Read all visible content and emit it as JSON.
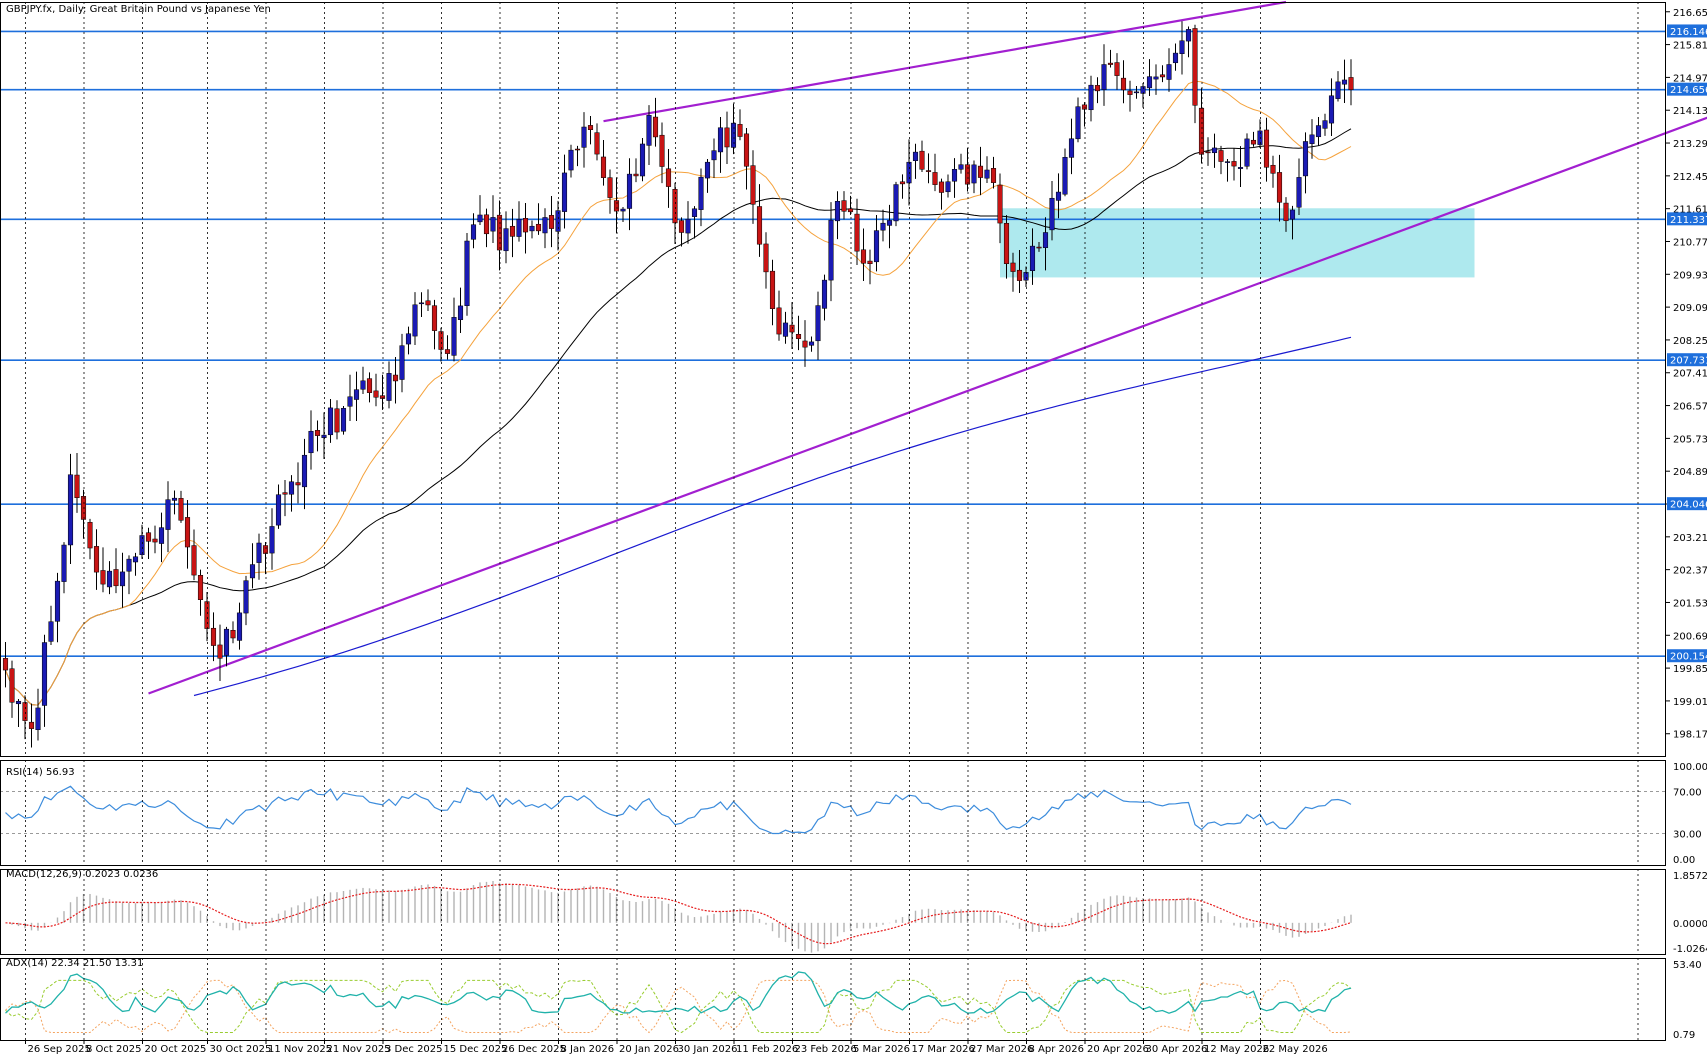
{
  "window": {
    "symbol": "GBPJPY.fx",
    "timeframe": "Daily",
    "description": "Great Britain Pound vs Japanese Yen",
    "title_text": "GBPJPY.fx, Daily:  Great Britain Pound vs Japanese Yen"
  },
  "colors": {
    "bull": "#1a1ab4",
    "bear": "#c81414",
    "hline": "#1e6fdc",
    "channel": "#a21fd0",
    "ma20": "#f5a23c",
    "ma50": "#000000",
    "ma200": "#1a1ad0",
    "zone": "#aee9ee",
    "rsi": "#3c8cdc",
    "macd_hist": "#b4b4b4",
    "macd_signal": "#e61e1e",
    "adx_main": "#20b2aa",
    "adx_plus": "#9acd32",
    "adx_minus": "#f4a460"
  },
  "price_axis": {
    "ticks": [
      "216.650",
      "215.810",
      "214.970",
      "214.130",
      "213.290",
      "212.450",
      "211.610",
      "210.770",
      "209.930",
      "209.090",
      "208.250",
      "207.410",
      "206.570",
      "205.730",
      "204.890",
      "204.050",
      "203.210",
      "202.370",
      "201.530",
      "200.690",
      "199.850",
      "199.010",
      "198.170"
    ],
    "tagged_levels": [
      {
        "text": "216.146",
        "value": 216.146
      },
      {
        "text": "214.656",
        "value": 214.656
      },
      {
        "text": "211.337",
        "value": 211.337
      },
      {
        "text": "207.731",
        "value": 207.731
      },
      {
        "text": "204.046",
        "value": 204.046
      },
      {
        "text": "200.154",
        "value": 200.154
      }
    ]
  },
  "date_axis": {
    "labels": [
      "26 Sep 2025",
      "8 Oct 2025",
      "20 Oct 2025",
      "30 Oct 2025",
      "11 Nov 2025",
      "21 Nov 2025",
      "3 Dec 2025",
      "15 Dec 2025",
      "26 Dec 2025",
      "8 Jan 2026",
      "20 Jan 2026",
      "30 Jan 2026",
      "11 Feb 2026",
      "23 Feb 2026",
      "5 Mar 2026",
      "17 Mar 2026",
      "27 Mar 2026",
      "8 Apr 2026",
      "20 Apr 2026",
      "30 Apr 2026",
      "12 May 2026",
      "22 May 2026"
    ]
  },
  "indicators": {
    "rsi": {
      "label": "RSI(14) 56.93",
      "ticks": [
        "100.00",
        "70.00",
        "30.00",
        "0.00"
      ]
    },
    "macd": {
      "label": "MACD(12,26,9) 0.2023 0.0236",
      "ticks": [
        "1.8572",
        "0.0000",
        "-1.0264"
      ]
    },
    "adx": {
      "label": "ADX(14) 22.34 21.50 13.31",
      "ticks": [
        "53.40",
        "0.79"
      ]
    }
  },
  "chart_data": {
    "type": "candlestick",
    "title": "GBPJPY.fx, Daily:  Great Britain Pound vs Japanese Yen",
    "ylim": [
      197.6,
      216.9
    ],
    "horizontal_levels": [
      216.146,
      214.656,
      211.337,
      207.731,
      204.046,
      200.154
    ],
    "support_zone": {
      "from_bar": 153,
      "to_bar": 226,
      "low": 209.85,
      "high": 211.62
    },
    "trendlines": [
      {
        "from": [
          22,
          199.2
        ],
        "to": [
          297,
          216.1
        ]
      },
      {
        "from": [
          92,
          213.85
        ],
        "to": [
          197,
          216.9
        ]
      }
    ],
    "candles": {
      "first_date": "26 Sep 2025",
      "last_date": "22 May 2026",
      "count": 208,
      "close_anchors": [
        {
          "bar": 0,
          "close": 199.8
        },
        {
          "bar": 4,
          "close": 198.3
        },
        {
          "bar": 9,
          "close": 203.0
        },
        {
          "bar": 10,
          "close": 204.8
        },
        {
          "bar": 15,
          "close": 202.0
        },
        {
          "bar": 20,
          "close": 202.7
        },
        {
          "bar": 26,
          "close": 204.2
        },
        {
          "bar": 30,
          "close": 201.6
        },
        {
          "bar": 33,
          "close": 200.1
        },
        {
          "bar": 38,
          "close": 202.5
        },
        {
          "bar": 43,
          "close": 204.3
        },
        {
          "bar": 48,
          "close": 205.8
        },
        {
          "bar": 52,
          "close": 206.5
        },
        {
          "bar": 56,
          "close": 206.9
        },
        {
          "bar": 60,
          "close": 207.2
        },
        {
          "bar": 64,
          "close": 209.2
        },
        {
          "bar": 68,
          "close": 207.9
        },
        {
          "bar": 72,
          "close": 211.2
        },
        {
          "bar": 78,
          "close": 210.9
        },
        {
          "bar": 84,
          "close": 211.1
        },
        {
          "bar": 89,
          "close": 213.7
        },
        {
          "bar": 95,
          "close": 211.6
        },
        {
          "bar": 99,
          "close": 214.0
        },
        {
          "bar": 104,
          "close": 211.0
        },
        {
          "bar": 108,
          "close": 212.8
        },
        {
          "bar": 112,
          "close": 213.8
        },
        {
          "bar": 116,
          "close": 210.7
        },
        {
          "bar": 119,
          "close": 208.4
        },
        {
          "bar": 124,
          "close": 208.2
        },
        {
          "bar": 128,
          "close": 211.8
        },
        {
          "bar": 133,
          "close": 210.2
        },
        {
          "bar": 139,
          "close": 212.8
        },
        {
          "bar": 145,
          "close": 212.3
        },
        {
          "bar": 151,
          "close": 212.6
        },
        {
          "bar": 155,
          "close": 210.0
        },
        {
          "bar": 160,
          "close": 211.0
        },
        {
          "bar": 164,
          "close": 213.4
        },
        {
          "bar": 169,
          "close": 215.3
        },
        {
          "bar": 174,
          "close": 214.6
        },
        {
          "bar": 179,
          "close": 215.3
        },
        {
          "bar": 182,
          "close": 216.2
        },
        {
          "bar": 184,
          "close": 213.0
        },
        {
          "bar": 189,
          "close": 212.7
        },
        {
          "bar": 193,
          "close": 213.6
        },
        {
          "bar": 197,
          "close": 211.3
        },
        {
          "bar": 201,
          "close": 213.5
        },
        {
          "bar": 204,
          "close": 214.5
        },
        {
          "bar": 207,
          "close": 214.656
        }
      ]
    },
    "moving_averages": [
      {
        "name": "MA20",
        "period": 20
      },
      {
        "name": "MA50",
        "period": 50
      },
      {
        "name": "MA200",
        "period": 200
      }
    ]
  }
}
